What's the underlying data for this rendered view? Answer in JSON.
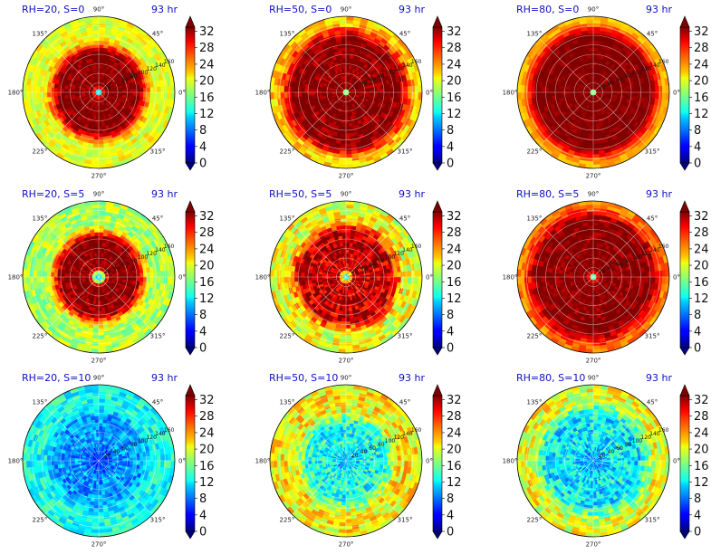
{
  "chart_data": {
    "type": "heatmap",
    "layout": {
      "rows": 3,
      "cols": 3
    },
    "colormap": "jet",
    "clim": [
      0,
      33
    ],
    "colorbar_ticks": [
      "0",
      "4",
      "8",
      "12",
      "16",
      "20",
      "24",
      "28",
      "32"
    ],
    "angle_labels": [
      "0°",
      "45°",
      "90°",
      "135°",
      "180°",
      "225°",
      "270°",
      "315°"
    ],
    "radial_labels": [
      "20",
      "40",
      "60",
      "80",
      "100",
      "120",
      "140",
      "160"
    ],
    "radial_max": 160,
    "panels": [
      {
        "title": "RH=20, S=0",
        "time": "93 hr",
        "eye_value": 10,
        "eye_radius": 12,
        "core_value": 33,
        "core_radius": 85,
        "outer_value": 20,
        "noise": 2.5
      },
      {
        "title": "RH=50, S=0",
        "time": "93 hr",
        "eye_value": 14,
        "eye_radius": 10,
        "core_value": 33,
        "core_radius": 115,
        "outer_value": 22,
        "noise": 3
      },
      {
        "title": "RH=80, S=0",
        "time": "93 hr",
        "eye_value": 12,
        "eye_radius": 8,
        "core_value": 33,
        "core_radius": 120,
        "outer_value": 23,
        "noise": 1.5
      },
      {
        "title": "RH=20, S=5",
        "time": "93 hr",
        "eye_value": 11,
        "eye_radius": 20,
        "core_value": 33,
        "core_radius": 80,
        "outer_value": 18,
        "noise": 3
      },
      {
        "title": "RH=50, S=5",
        "time": "93 hr",
        "eye_value": 12,
        "eye_radius": 15,
        "core_value": 31,
        "core_radius": 95,
        "outer_value": 20,
        "noise": 4
      },
      {
        "title": "RH=80, S=5",
        "time": "93 hr",
        "eye_value": 13,
        "eye_radius": 12,
        "core_value": 33,
        "core_radius": 120,
        "outer_value": 25,
        "noise": 2.5
      },
      {
        "title": "RH=20, S=10",
        "time": "93 hr",
        "eye_value": 6,
        "eye_radius": 40,
        "core_value": 9,
        "core_radius": 90,
        "outer_value": 13,
        "noise": 3
      },
      {
        "title": "RH=50, S=10",
        "time": "93 hr",
        "eye_value": 10,
        "eye_radius": 30,
        "core_value": 13,
        "core_radius": 80,
        "outer_value": 21,
        "noise": 4
      },
      {
        "title": "RH=80, S=10",
        "time": "93 hr",
        "eye_value": 9,
        "eye_radius": 40,
        "core_value": 12,
        "core_radius": 100,
        "outer_value": 20,
        "noise": 4
      }
    ]
  }
}
